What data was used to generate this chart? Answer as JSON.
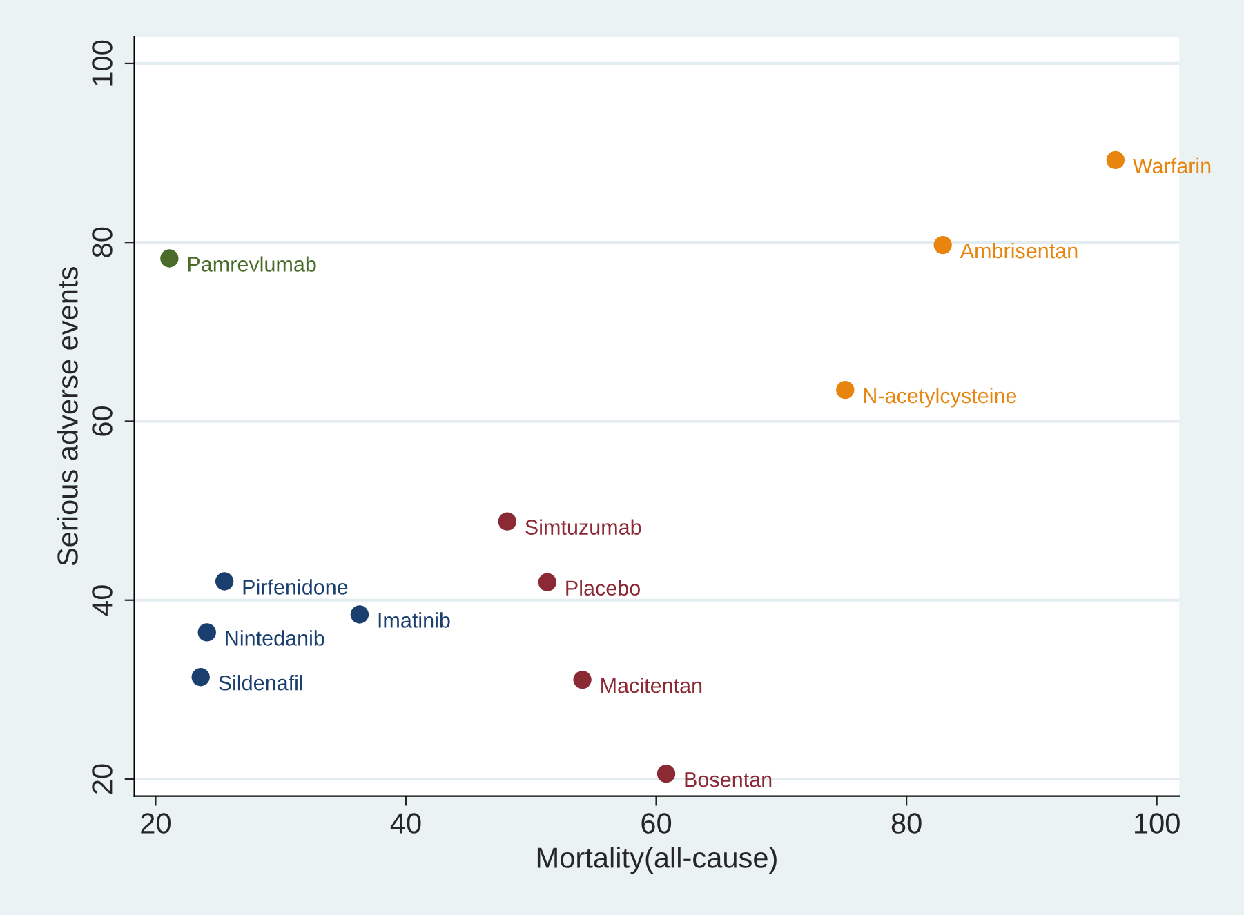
{
  "chart_data": {
    "type": "scatter",
    "xlabel": "Mortality(all-cause)",
    "ylabel": "Serious adverse events",
    "xlim": [
      18.3,
      101.8
    ],
    "ylim": [
      18.1,
      103
    ],
    "xticks": [
      20,
      40,
      60,
      80,
      100
    ],
    "yticks": [
      20,
      40,
      60,
      80,
      100
    ],
    "grid": "y",
    "marker": "circle",
    "series": [
      {
        "color": "#1a3f6e",
        "x": [
          25.5,
          36.3,
          24.1,
          23.6
        ],
        "values": [
          42.1,
          38.4,
          36.4,
          31.4
        ]
      },
      {
        "color": "#8b2a35",
        "x": [
          48.1,
          51.3,
          54.1,
          60.8
        ],
        "values": [
          48.8,
          42.0,
          31.1,
          20.6
        ]
      },
      {
        "color": "#e8850f",
        "x": [
          96.7,
          82.9,
          75.1
        ],
        "values": [
          89.2,
          79.7,
          63.5
        ]
      },
      {
        "color": "#4a6b2a",
        "x": [
          21.1
        ],
        "values": [
          78.2
        ]
      }
    ],
    "annotations": [
      {
        "text": "Pirfenidone",
        "x": 25.5,
        "y": 42.1
      },
      {
        "text": "Imatinib",
        "x": 36.3,
        "y": 38.4
      },
      {
        "text": "Nintedanib",
        "x": 24.1,
        "y": 36.4
      },
      {
        "text": "Sildenafil",
        "x": 23.6,
        "y": 31.4
      },
      {
        "text": "Simtuzumab",
        "x": 48.1,
        "y": 48.8
      },
      {
        "text": "Placebo",
        "x": 51.3,
        "y": 42.0
      },
      {
        "text": "Macitentan",
        "x": 54.1,
        "y": 31.1
      },
      {
        "text": "Bosentan",
        "x": 60.8,
        "y": 20.6
      },
      {
        "text": "Warfarin",
        "x": 96.7,
        "y": 89.2
      },
      {
        "text": "Ambrisentan",
        "x": 82.9,
        "y": 79.7
      },
      {
        "text": "N-acetylcysteine",
        "x": 75.1,
        "y": 63.5
      },
      {
        "text": "Pamrevlumab",
        "x": 21.1,
        "y": 78.2
      }
    ]
  }
}
